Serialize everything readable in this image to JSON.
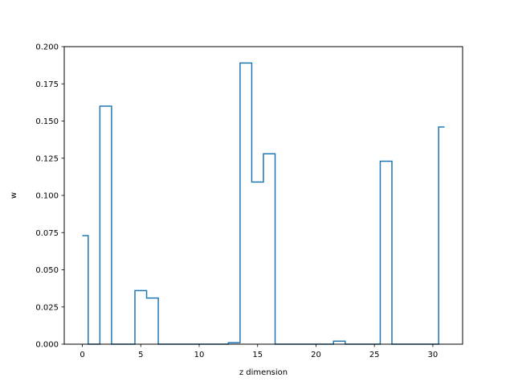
{
  "chart_data": {
    "type": "line",
    "drawstyle": "steps-mid",
    "xlabel": "z dimension",
    "ylabel": "w",
    "xlim": [
      -1.55,
      32.55
    ],
    "ylim": [
      0.0,
      0.2
    ],
    "x_ticks": [
      0,
      5,
      10,
      15,
      20,
      25,
      30
    ],
    "x_tick_labels": [
      "0",
      "5",
      "10",
      "15",
      "20",
      "25",
      "30"
    ],
    "y_ticks": [
      0.0,
      0.025,
      0.05,
      0.075,
      0.1,
      0.125,
      0.15,
      0.175,
      0.2
    ],
    "y_tick_labels": [
      "0.000",
      "0.025",
      "0.050",
      "0.075",
      "0.100",
      "0.125",
      "0.150",
      "0.175",
      "0.200"
    ],
    "grid": false,
    "series": [
      {
        "color": "#1f77b4",
        "x": [
          0,
          1,
          2,
          3,
          4,
          5,
          6,
          7,
          8,
          9,
          10,
          11,
          12,
          13,
          14,
          15,
          16,
          17,
          18,
          19,
          20,
          21,
          22,
          23,
          24,
          25,
          26,
          27,
          28,
          29,
          30,
          31
        ],
        "values": [
          0.073,
          0.0,
          0.16,
          0.0,
          0.0,
          0.036,
          0.031,
          0.0,
          0.0,
          0.0,
          0.0,
          0.0,
          0.0,
          0.001,
          0.189,
          0.109,
          0.128,
          0.0,
          0.0,
          0.0,
          0.0,
          0.0,
          0.002,
          0.0,
          0.0,
          0.0,
          0.123,
          0.0,
          0.0,
          0.0,
          0.0,
          0.146
        ]
      }
    ]
  }
}
